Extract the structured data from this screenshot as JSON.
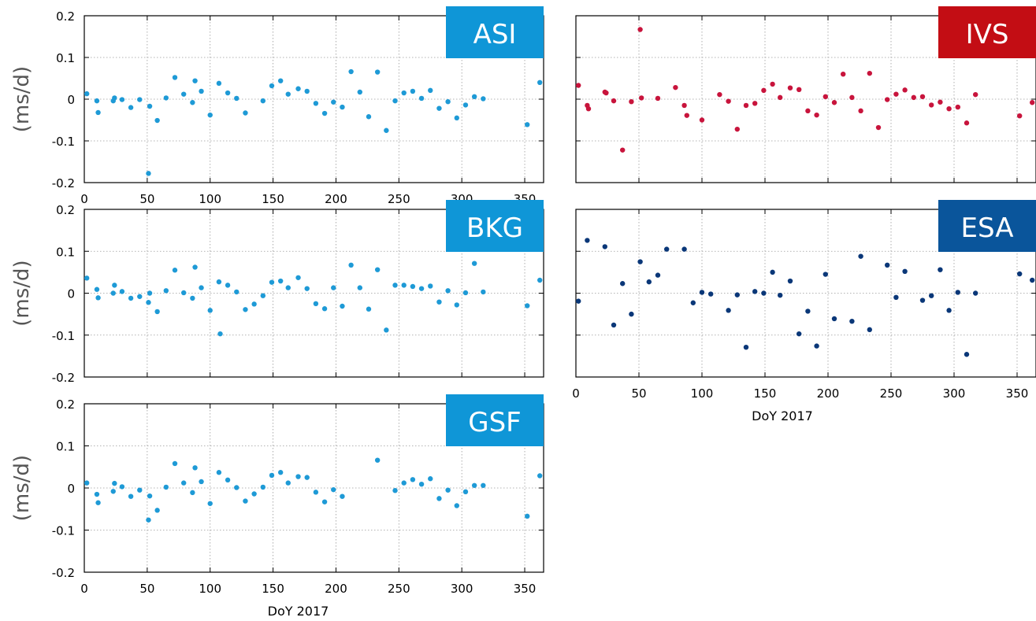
{
  "colors": {
    "ASI": "#1e9ad6",
    "IVS": "#c8143c",
    "BKG": "#1e9ad6",
    "ESA": "#0a3778",
    "GSF": "#1e9ad6",
    "badge_ASI": "#0f96d7",
    "badge_IVS": "#c30d14",
    "badge_BKG": "#0f96d7",
    "badge_ESA": "#0a559b",
    "badge_GSF": "#0f96d7"
  },
  "chart_data": [
    {
      "type": "scatter",
      "label": "ASI",
      "ylabel": "(ms/d)",
      "xlabel": "",
      "xlim": [
        0,
        365
      ],
      "ylim": [
        -0.2,
        0.2
      ],
      "xticks": [
        "0",
        "50",
        "100",
        "150",
        "200",
        "250",
        "300",
        "350"
      ],
      "yticks": [
        "-0.2",
        "-0.1",
        "0",
        "0.1",
        "0.2"
      ],
      "grid": true,
      "points": [
        [
          2,
          0.013
        ],
        [
          10,
          -0.004
        ],
        [
          11,
          -0.032
        ],
        [
          23,
          -0.004
        ],
        [
          24,
          0.003
        ],
        [
          30,
          -0.001
        ],
        [
          37,
          -0.02
        ],
        [
          44,
          -0.001
        ],
        [
          51,
          -0.178
        ],
        [
          52,
          -0.017
        ],
        [
          58,
          -0.051
        ],
        [
          65,
          0.003
        ],
        [
          72,
          0.052
        ],
        [
          79,
          0.012
        ],
        [
          86,
          -0.008
        ],
        [
          88,
          0.044
        ],
        [
          93,
          0.019
        ],
        [
          100,
          -0.038
        ],
        [
          107,
          0.038
        ],
        [
          114,
          0.015
        ],
        [
          121,
          0.002
        ],
        [
          128,
          -0.033
        ],
        [
          142,
          -0.004
        ],
        [
          149,
          0.032
        ],
        [
          156,
          0.044
        ],
        [
          162,
          0.012
        ],
        [
          170,
          0.025
        ],
        [
          177,
          0.019
        ],
        [
          184,
          -0.01
        ],
        [
          191,
          -0.034
        ],
        [
          198,
          -0.007
        ],
        [
          205,
          -0.019
        ],
        [
          212,
          0.066
        ],
        [
          219,
          0.017
        ],
        [
          226,
          -0.042
        ],
        [
          233,
          0.065
        ],
        [
          240,
          -0.075
        ],
        [
          247,
          -0.004
        ],
        [
          254,
          0.015
        ],
        [
          261,
          0.019
        ],
        [
          268,
          0.002
        ],
        [
          275,
          0.021
        ],
        [
          282,
          -0.022
        ],
        [
          289,
          -0.006
        ],
        [
          296,
          -0.045
        ],
        [
          303,
          -0.014
        ],
        [
          310,
          0.006
        ],
        [
          317,
          0.001
        ],
        [
          352,
          -0.061
        ],
        [
          362,
          0.04
        ]
      ]
    },
    {
      "type": "scatter",
      "label": "IVS",
      "ylabel": "",
      "xlabel": "",
      "xlim": [
        0,
        365
      ],
      "ylim": [
        -0.2,
        0.2
      ],
      "xticks": [],
      "yticks": [],
      "grid": true,
      "points": [
        [
          2,
          0.033
        ],
        [
          9,
          -0.015
        ],
        [
          10,
          -0.023
        ],
        [
          23,
          0.017
        ],
        [
          24,
          0.015
        ],
        [
          30,
          -0.004
        ],
        [
          37,
          -0.122
        ],
        [
          44,
          -0.006
        ],
        [
          51,
          0.167
        ],
        [
          52,
          0.003
        ],
        [
          65,
          0.002
        ],
        [
          79,
          0.028
        ],
        [
          86,
          -0.015
        ],
        [
          88,
          -0.039
        ],
        [
          100,
          -0.05
        ],
        [
          114,
          0.011
        ],
        [
          121,
          -0.005
        ],
        [
          128,
          -0.072
        ],
        [
          135,
          -0.015
        ],
        [
          142,
          -0.01
        ],
        [
          149,
          0.021
        ],
        [
          156,
          0.036
        ],
        [
          162,
          0.004
        ],
        [
          170,
          0.027
        ],
        [
          177,
          0.023
        ],
        [
          184,
          -0.028
        ],
        [
          191,
          -0.038
        ],
        [
          198,
          0.006
        ],
        [
          205,
          -0.008
        ],
        [
          212,
          0.06
        ],
        [
          219,
          0.004
        ],
        [
          226,
          -0.028
        ],
        [
          233,
          0.062
        ],
        [
          240,
          -0.068
        ],
        [
          247,
          -0.001
        ],
        [
          254,
          0.012
        ],
        [
          261,
          0.022
        ],
        [
          268,
          0.004
        ],
        [
          275,
          0.006
        ],
        [
          282,
          -0.014
        ],
        [
          289,
          -0.007
        ],
        [
          296,
          -0.023
        ],
        [
          303,
          -0.019
        ],
        [
          310,
          -0.057
        ],
        [
          317,
          0.011
        ],
        [
          352,
          -0.04
        ],
        [
          362,
          -0.008
        ]
      ]
    },
    {
      "type": "scatter",
      "label": "BKG",
      "ylabel": "(ms/d)",
      "xlabel": "",
      "xlim": [
        0,
        365
      ],
      "ylim": [
        -0.2,
        0.2
      ],
      "xticks": [],
      "yticks": [
        "-0.2",
        "-0.1",
        "0",
        "0.1",
        "0.2"
      ],
      "grid": true,
      "points": [
        [
          2,
          0.036
        ],
        [
          10,
          0.009
        ],
        [
          11,
          -0.011
        ],
        [
          23,
          0.0
        ],
        [
          24,
          0.019
        ],
        [
          30,
          0.004
        ],
        [
          37,
          -0.012
        ],
        [
          44,
          -0.008
        ],
        [
          51,
          -0.022
        ],
        [
          52,
          0.0
        ],
        [
          58,
          -0.044
        ],
        [
          65,
          0.006
        ],
        [
          72,
          0.055
        ],
        [
          79,
          0.001
        ],
        [
          86,
          -0.012
        ],
        [
          88,
          0.062
        ],
        [
          93,
          0.013
        ],
        [
          100,
          -0.041
        ],
        [
          107,
          0.027
        ],
        [
          108,
          -0.097
        ],
        [
          114,
          0.019
        ],
        [
          121,
          0.003
        ],
        [
          128,
          -0.039
        ],
        [
          135,
          -0.026
        ],
        [
          142,
          -0.006
        ],
        [
          149,
          0.026
        ],
        [
          156,
          0.029
        ],
        [
          162,
          0.013
        ],
        [
          170,
          0.037
        ],
        [
          177,
          0.011
        ],
        [
          184,
          -0.025
        ],
        [
          191,
          -0.037
        ],
        [
          198,
          0.013
        ],
        [
          205,
          -0.031
        ],
        [
          212,
          0.067
        ],
        [
          219,
          0.013
        ],
        [
          226,
          -0.038
        ],
        [
          233,
          0.056
        ],
        [
          240,
          -0.088
        ],
        [
          247,
          0.019
        ],
        [
          254,
          0.019
        ],
        [
          261,
          0.016
        ],
        [
          268,
          0.011
        ],
        [
          275,
          0.017
        ],
        [
          282,
          -0.021
        ],
        [
          289,
          0.006
        ],
        [
          296,
          -0.028
        ],
        [
          303,
          0.001
        ],
        [
          310,
          0.071
        ],
        [
          317,
          0.003
        ],
        [
          352,
          -0.03
        ],
        [
          362,
          0.031
        ]
      ]
    },
    {
      "type": "scatter",
      "label": "ESA",
      "ylabel": "",
      "xlabel": "DoY 2017",
      "xlim": [
        0,
        365
      ],
      "ylim": [
        -0.2,
        0.2
      ],
      "xticks": [
        "0",
        "50",
        "100",
        "150",
        "200",
        "250",
        "300",
        "350"
      ],
      "yticks": [],
      "grid": true,
      "points": [
        [
          2,
          -0.019
        ],
        [
          9,
          0.126
        ],
        [
          23,
          0.111
        ],
        [
          30,
          -0.076
        ],
        [
          37,
          0.023
        ],
        [
          44,
          -0.05
        ],
        [
          51,
          0.075
        ],
        [
          58,
          0.027
        ],
        [
          65,
          0.043
        ],
        [
          72,
          0.105
        ],
        [
          86,
          0.105
        ],
        [
          93,
          -0.023
        ],
        [
          100,
          0.002
        ],
        [
          107,
          -0.002
        ],
        [
          121,
          -0.041
        ],
        [
          128,
          -0.004
        ],
        [
          135,
          -0.129
        ],
        [
          142,
          0.004
        ],
        [
          149,
          0.0
        ],
        [
          156,
          0.05
        ],
        [
          162,
          -0.005
        ],
        [
          170,
          0.029
        ],
        [
          177,
          -0.097
        ],
        [
          184,
          -0.043
        ],
        [
          191,
          -0.126
        ],
        [
          198,
          0.045
        ],
        [
          205,
          -0.061
        ],
        [
          219,
          -0.067
        ],
        [
          226,
          0.088
        ],
        [
          233,
          -0.087
        ],
        [
          247,
          0.067
        ],
        [
          254,
          -0.01
        ],
        [
          261,
          0.052
        ],
        [
          275,
          -0.017
        ],
        [
          282,
          -0.006
        ],
        [
          289,
          0.056
        ],
        [
          296,
          -0.041
        ],
        [
          303,
          0.002
        ],
        [
          310,
          -0.146
        ],
        [
          317,
          0.0
        ],
        [
          352,
          0.046
        ],
        [
          362,
          0.031
        ]
      ]
    },
    {
      "type": "scatter",
      "label": "GSF",
      "ylabel": "(ms/d)",
      "xlabel": "DoY 2017",
      "xlim": [
        0,
        365
      ],
      "ylim": [
        -0.2,
        0.2
      ],
      "xticks": [
        "0",
        "50",
        "100",
        "150",
        "200",
        "250",
        "300",
        "350"
      ],
      "yticks": [
        "-0.2",
        "-0.1",
        "0",
        "0.1",
        "0.2"
      ],
      "grid": true,
      "points": [
        [
          2,
          0.012
        ],
        [
          10,
          -0.015
        ],
        [
          11,
          -0.035
        ],
        [
          23,
          -0.008
        ],
        [
          24,
          0.011
        ],
        [
          30,
          0.003
        ],
        [
          37,
          -0.02
        ],
        [
          44,
          -0.005
        ],
        [
          51,
          -0.076
        ],
        [
          52,
          -0.019
        ],
        [
          58,
          -0.053
        ],
        [
          65,
          0.002
        ],
        [
          72,
          0.058
        ],
        [
          79,
          0.012
        ],
        [
          86,
          -0.011
        ],
        [
          88,
          0.048
        ],
        [
          93,
          0.015
        ],
        [
          100,
          -0.037
        ],
        [
          107,
          0.037
        ],
        [
          114,
          0.019
        ],
        [
          121,
          0.001
        ],
        [
          128,
          -0.031
        ],
        [
          135,
          -0.014
        ],
        [
          142,
          0.002
        ],
        [
          149,
          0.03
        ],
        [
          156,
          0.037
        ],
        [
          162,
          0.012
        ],
        [
          170,
          0.027
        ],
        [
          177,
          0.025
        ],
        [
          184,
          -0.01
        ],
        [
          191,
          -0.033
        ],
        [
          198,
          -0.004
        ],
        [
          205,
          -0.02
        ],
        [
          233,
          0.066
        ],
        [
          247,
          -0.006
        ],
        [
          254,
          0.012
        ],
        [
          261,
          0.02
        ],
        [
          268,
          0.009
        ],
        [
          275,
          0.022
        ],
        [
          282,
          -0.025
        ],
        [
          289,
          -0.005
        ],
        [
          296,
          -0.042
        ],
        [
          303,
          -0.009
        ],
        [
          310,
          0.006
        ],
        [
          317,
          0.006
        ],
        [
          352,
          -0.067
        ],
        [
          362,
          0.029
        ]
      ]
    }
  ]
}
